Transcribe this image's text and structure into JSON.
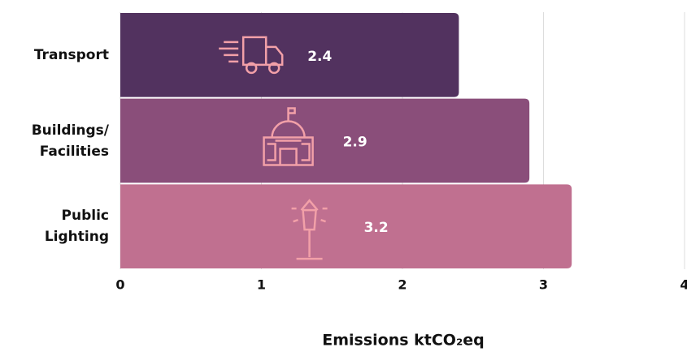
{
  "chart_data": {
    "type": "bar",
    "orientation": "horizontal",
    "categories": [
      "Transport",
      "Buildings/ Facilities",
      "Public Lighting"
    ],
    "values": [
      2.4,
      2.9,
      3.2
    ],
    "colors": [
      "#52325f",
      "#8a4e7a",
      "#c07090"
    ],
    "xlim": [
      0,
      4
    ],
    "xticks": [
      0,
      1,
      2,
      3,
      4
    ],
    "xlabel": "Emissions ktCO₂eq",
    "grid": true
  }
}
